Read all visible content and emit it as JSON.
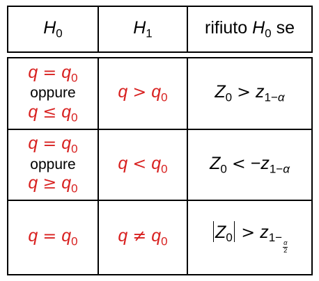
{
  "header": {
    "col1": "H0",
    "col2": "H1",
    "col3": "rifiuto H0 se"
  },
  "rows": [
    {
      "h0": [
        "q = q0",
        "oppure",
        "q ≤ q0"
      ],
      "h1": "q > q0",
      "reject": "Z0 > z1−α"
    },
    {
      "h0": [
        "q = q0",
        "oppure",
        "q ≥ q0"
      ],
      "h1": "q < q0",
      "reject": "Z0 < −z1−α"
    },
    {
      "h0": [
        "q = q0"
      ],
      "h1": "q ≠ q0",
      "reject": "|Z0| > z1−α/2"
    }
  ],
  "colors": {
    "highlight": "#d8201f",
    "text": "#000000",
    "border": "#000000"
  }
}
